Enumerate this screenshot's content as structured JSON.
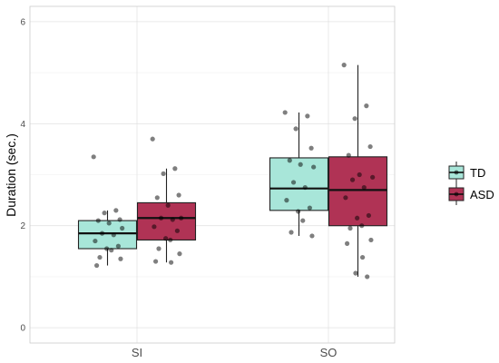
{
  "chart_data": {
    "type": "boxplot",
    "xlabel": "",
    "ylabel": "Duration (sec.)",
    "ylim": [
      -0.3,
      6.3
    ],
    "yticks": [
      0,
      2,
      4,
      6
    ],
    "categories": [
      "SI",
      "SO"
    ],
    "grid": true,
    "legend_position": "right",
    "series": [
      {
        "name": "TD",
        "color": "#a8e6d9",
        "boxes": [
          {
            "category": "SI",
            "q1": 1.55,
            "median": 1.85,
            "q3": 2.1,
            "whisker_low": 1.22,
            "whisker_high": 2.3,
            "points": [
              3.35,
              2.3,
              2.25,
              2.12,
              2.1,
              2.05,
              1.95,
              1.85,
              1.82,
              1.7,
              1.6,
              1.55,
              1.52,
              1.38,
              1.35,
              1.22
            ]
          },
          {
            "category": "SO",
            "q1": 2.3,
            "median": 2.73,
            "q3": 3.33,
            "whisker_low": 1.8,
            "whisker_high": 4.22,
            "points": [
              4.22,
              4.15,
              3.9,
              3.52,
              3.28,
              3.2,
              3.15,
              2.85,
              2.75,
              2.5,
              2.35,
              2.28,
              2.1,
              1.87,
              1.8
            ]
          }
        ]
      },
      {
        "name": "ASD",
        "color": "#b03355",
        "boxes": [
          {
            "category": "SI",
            "q1": 1.72,
            "median": 2.15,
            "q3": 2.45,
            "whisker_low": 1.28,
            "whisker_high": 3.12,
            "points": [
              3.7,
              3.12,
              3.02,
              2.6,
              2.55,
              2.4,
              2.15,
              2.15,
              2.12,
              1.98,
              1.9,
              1.75,
              1.72,
              1.55,
              1.45,
              1.3,
              1.28
            ]
          },
          {
            "category": "SO",
            "q1": 2.0,
            "median": 2.7,
            "q3": 3.35,
            "whisker_low": 1.0,
            "whisker_high": 5.15,
            "points": [
              5.15,
              4.35,
              4.1,
              3.55,
              3.38,
              3.0,
              2.95,
              2.9,
              2.75,
              2.55,
              2.2,
              2.15,
              2.0,
              1.95,
              1.72,
              1.65,
              1.38,
              1.07,
              1.0
            ]
          }
        ]
      }
    ]
  }
}
